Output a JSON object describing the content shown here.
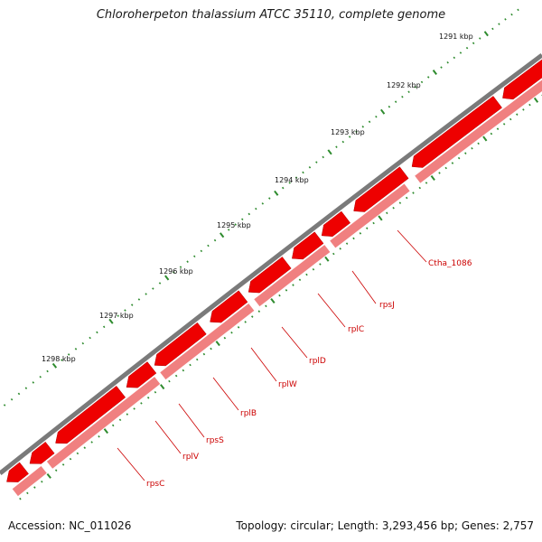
{
  "title": "Chloroherpeton thalassium ATCC 35110, complete genome",
  "accession": "Accession: NC_011026",
  "summary": "Topology: circular; Length: 3,293,456 bp; Genes: 2,757",
  "colors": {
    "backbone": "#7a7a7a",
    "forward_gene": "#ee0000",
    "reverse_gene": "#f08080",
    "tick": "#2e8b2e",
    "label": "#cc0000"
  },
  "kbp_ticks": [
    "1291 kbp",
    "1292 kbp",
    "1293 kbp",
    "1294 kbp",
    "1295 kbp",
    "1296 kbp",
    "1297 kbp",
    "1298 kbp"
  ],
  "gene_labels": [
    "Ctha_1086",
    "rpsJ",
    "rplC",
    "rplD",
    "rplW",
    "rplB",
    "rpsS",
    "rplV",
    "rpsC"
  ]
}
